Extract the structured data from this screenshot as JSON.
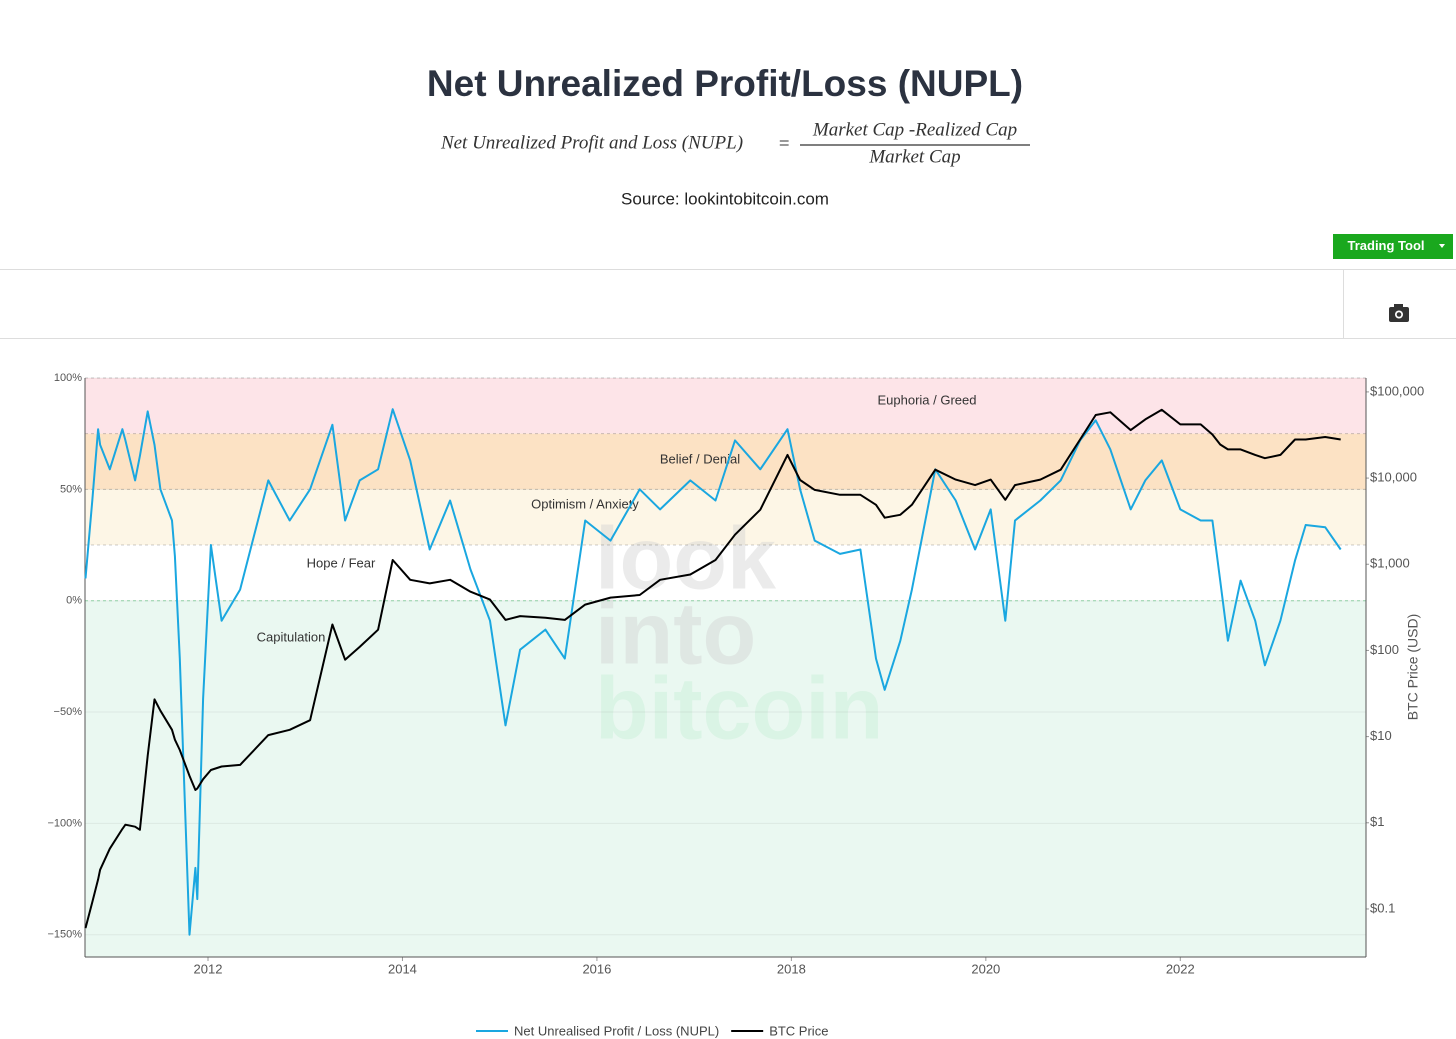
{
  "header": {
    "title": "Net Unrealized Profit/Loss (NUPL)",
    "formula": {
      "left": "Net Unrealized Profit and Loss (NUPL)",
      "equals": "=",
      "numerator": "Market Cap -Realized Cap",
      "denominator": "Market Cap"
    },
    "source": "Source: lookintobitcoin.com"
  },
  "toolbar": {
    "button": "Trading Tool"
  },
  "chart_data": {
    "type": "line",
    "watermark": [
      "look",
      "into",
      "bitcoin"
    ],
    "x": [
      2010.74,
      2010.81,
      2010.87,
      2010.89,
      2010.99,
      2011.12,
      2011.15,
      2011.25,
      2011.3,
      2011.38,
      2011.45,
      2011.51,
      2011.63,
      2011.66,
      2011.71,
      2011.81,
      2011.87,
      2011.89,
      2011.95,
      2012.03,
      2012.14,
      2012.33,
      2012.62,
      2012.84,
      2013.05,
      2013.28,
      2013.41,
      2013.56,
      2013.75,
      2013.9,
      2014.08,
      2014.28,
      2014.49,
      2014.7,
      2014.9,
      2015.06,
      2015.21,
      2015.47,
      2015.67,
      2015.88,
      2016.14,
      2016.44,
      2016.65,
      2016.96,
      2017.22,
      2017.42,
      2017.68,
      2017.96,
      2018.09,
      2018.24,
      2018.5,
      2018.71,
      2018.87,
      2018.96,
      2019.12,
      2019.24,
      2019.48,
      2019.69,
      2019.89,
      2020.05,
      2020.2,
      2020.3,
      2020.56,
      2020.77,
      2020.97,
      2021.13,
      2021.28,
      2021.49,
      2021.64,
      2021.81,
      2022.0,
      2022.21,
      2022.33,
      2022.41,
      2022.49,
      2022.62,
      2022.77,
      2022.87,
      2023.03,
      2023.18,
      2023.29,
      2023.49,
      2023.65
    ],
    "series": [
      {
        "name": "Net Unrealised Profit / Loss (NUPL)",
        "color": "#1aa7e0",
        "values": [
          10,
          45,
          77,
          70,
          59,
          77,
          72,
          54,
          65,
          85,
          70,
          50,
          36,
          20,
          -26,
          -150,
          -120,
          -134,
          -44,
          25,
          -9,
          5,
          54,
          36,
          50,
          79,
          36,
          54,
          59,
          86,
          63,
          23,
          45,
          14,
          -9,
          -56,
          -22,
          -13,
          -26,
          36,
          27,
          50,
          41,
          54,
          45,
          72,
          59,
          77,
          50,
          27,
          21,
          23,
          -26,
          -40,
          -18,
          5,
          59,
          45,
          23,
          41,
          -9,
          36,
          45,
          54,
          72,
          81,
          68,
          41,
          54,
          63,
          41,
          36,
          36,
          9,
          -18,
          9,
          -9,
          -29,
          -9,
          18,
          34,
          33,
          23
        ]
      },
      {
        "name": "BTC Price",
        "color": "#000000",
        "axis": "y2",
        "values": [
          0.06,
          0.12,
          0.22,
          0.285,
          0.5,
          0.85,
          0.95,
          0.9,
          0.83,
          6,
          27,
          20,
          12,
          9.2,
          7,
          3.5,
          2.4,
          2.5,
          3.2,
          4.1,
          4.5,
          4.7,
          10.4,
          12,
          15.5,
          200,
          78,
          110,
          174,
          1120,
          660,
          600,
          660,
          480,
          389,
          226,
          250,
          240,
          226,
          340,
          410,
          440,
          660,
          760,
          1120,
          2200,
          4300,
          18600,
          9500,
          7300,
          6400,
          6400,
          4900,
          3470,
          3750,
          4900,
          12500,
          9600,
          8300,
          9600,
          5600,
          8300,
          9600,
          12500,
          28000,
          54000,
          58000,
          36000,
          48000,
          62000,
          42000,
          42000,
          32000,
          24500,
          21500,
          21500,
          18600,
          17000,
          18600,
          28000,
          28000,
          30000,
          28000
        ]
      }
    ],
    "zones": [
      {
        "label": "Euphoria / Greed",
        "from": 75,
        "to": 100,
        "color": "#fde4e8"
      },
      {
        "label": "Belief / Denial",
        "from": 50,
        "to": 75,
        "color": "#fce2c4"
      },
      {
        "label": "Optimism / Anxiety",
        "from": 25,
        "to": 50,
        "color": "#fdf6e6"
      },
      {
        "label": "Hope / Fear",
        "from": 0,
        "to": 25,
        "color": "#ffffff"
      },
      {
        "label": "Capitulation",
        "from": -160,
        "to": 0,
        "color": "#eaf8f1"
      }
    ],
    "xlim": [
      2010.735,
      2023.91
    ],
    "xticks": [
      2012,
      2014,
      2016,
      2018,
      2020,
      2022
    ],
    "ylim": [
      -160,
      100
    ],
    "yticks": [
      {
        "value": 100,
        "label": "100%"
      },
      {
        "value": 50,
        "label": "50%"
      },
      {
        "value": 0,
        "label": "0%"
      },
      {
        "value": -50,
        "label": "−50%"
      },
      {
        "value": -100,
        "label": "−100%"
      },
      {
        "value": -150,
        "label": "−150%"
      }
    ],
    "y2lim": [
      0.0277,
      145000
    ],
    "y2scale": "log",
    "y2ticks": [
      {
        "value": 100000,
        "label": "$100,000"
      },
      {
        "value": 10000,
        "label": "$10,000"
      },
      {
        "value": 1000,
        "label": "$1,000"
      },
      {
        "value": 100,
        "label": "$100"
      },
      {
        "value": 10,
        "label": "$10"
      },
      {
        "value": 1,
        "label": "$1"
      },
      {
        "value": 0.1,
        "label": "$0.1"
      }
    ],
    "y2label": "BTC Price (USD)",
    "grid": true
  }
}
